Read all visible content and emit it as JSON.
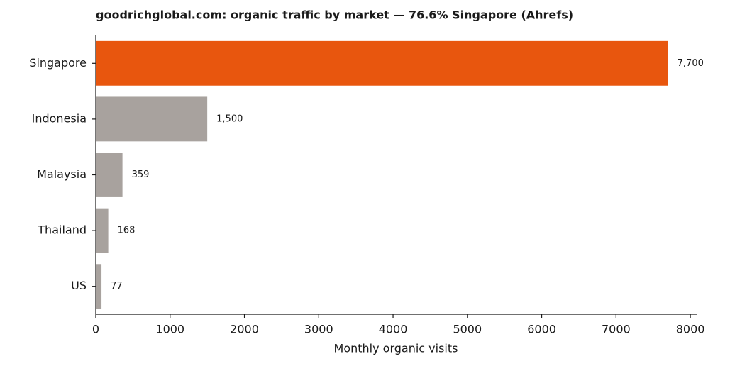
{
  "chart_data": {
    "type": "barh",
    "title": "goodrichglobal.com: organic traffic by market — 76.6% Singapore (Ahrefs)",
    "xlabel": "Monthly organic visits",
    "categories": [
      "Singapore",
      "Indonesia",
      "Malaysia",
      "Thailand",
      "US"
    ],
    "values": [
      7700,
      1500,
      359,
      168,
      77
    ],
    "value_labels": [
      "7,700",
      "1,500",
      "359",
      "168",
      "77"
    ],
    "colors": [
      "#e8560e",
      "#a8a29e",
      "#a8a29e",
      "#a8a29e",
      "#a8a29e"
    ],
    "xlim": [
      0,
      8085
    ],
    "xticks": [
      0,
      1000,
      2000,
      3000,
      4000,
      5000,
      6000,
      7000,
      8000
    ],
    "grid": false
  }
}
